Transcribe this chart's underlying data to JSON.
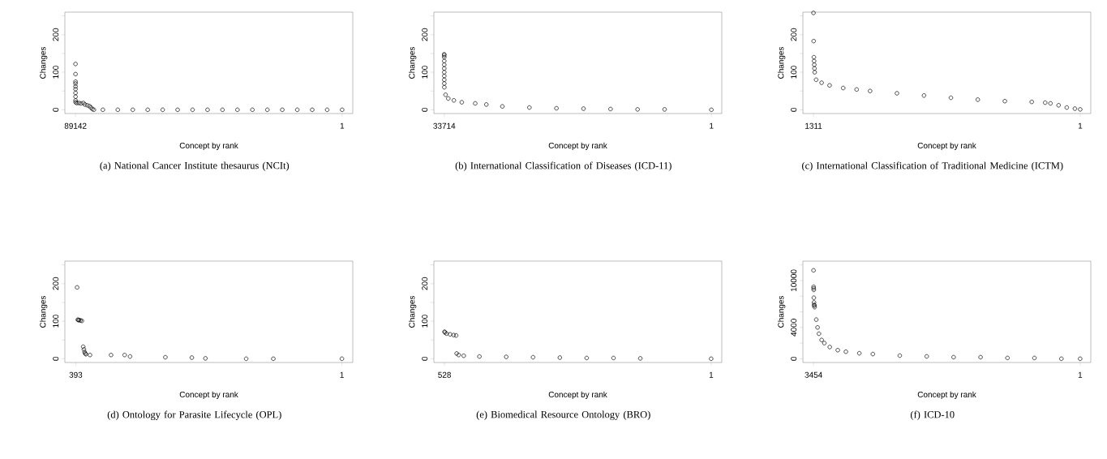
{
  "chart_data": [
    {
      "type": "scatter",
      "title": "(a)  National Cancer Institute thesaurus (NCIt)",
      "xlabel": "Concept by rank",
      "ylabel": "Changes",
      "marker": "circle",
      "x": [
        89142,
        89140,
        89138,
        89136,
        89134,
        89132,
        89130,
        89128,
        89126,
        89124,
        88700,
        88000,
        87300,
        86500,
        86000,
        85200,
        84500,
        84000,
        83500,
        83000,
        80000,
        75000,
        70000,
        65000,
        60000,
        55000,
        50000,
        45000,
        40000,
        35000,
        30000,
        25000,
        20000,
        15000,
        10000,
        5000,
        1
      ],
      "series": [
        {
          "color": "#000000",
          "values": [
            122,
            95,
            75,
            70,
            62,
            55,
            45,
            35,
            25,
            20,
            18,
            18,
            17,
            18,
            14,
            12,
            10,
            6,
            2,
            0,
            0,
            0,
            0,
            0,
            0,
            0,
            0,
            0,
            0,
            0,
            0,
            0,
            0,
            0,
            0,
            0,
            0
          ]
        }
      ],
      "xlim": [
        92700,
        -3560
      ],
      "ylim": [
        -10,
        260
      ],
      "xticks": [
        89142,
        1
      ],
      "yticks": [
        0,
        {
          "value": 50,
          "label": null
        },
        100,
        {
          "value": 150,
          "label": null
        },
        200,
        {
          "value": 250,
          "label": null
        }
      ]
    },
    {
      "type": "scatter",
      "title": "(b)  International Classification of Diseases (ICD-11)",
      "xlabel": "Concept by rank",
      "ylabel": "Changes",
      "marker": "circle",
      "x": [
        33714,
        33713,
        33712,
        33711,
        33710,
        33709,
        33708,
        33707,
        33706,
        33705,
        33704,
        33544,
        33200,
        32500,
        31500,
        29800,
        28400,
        26378,
        22966,
        19553,
        16140,
        12728,
        9316,
        5903,
        1
      ],
      "series": [
        {
          "color": "#000000",
          "values": [
            148,
            145,
            140,
            130,
            120,
            110,
            100,
            90,
            80,
            70,
            60,
            40,
            30,
            25,
            20,
            17,
            14,
            9,
            6,
            4,
            3,
            2,
            1,
            1,
            0
          ]
        }
      ],
      "xlim": [
        35020,
        -1310
      ],
      "ylim": [
        -10,
        260
      ],
      "xticks": [
        33714,
        1
      ],
      "yticks": [
        0,
        {
          "value": 50,
          "label": null
        },
        100,
        {
          "value": 150,
          "label": null
        },
        200,
        {
          "value": 250,
          "label": null
        }
      ]
    },
    {
      "type": "scatter",
      "title": "(c)  International Classification of Traditional Medicine (ICTM)",
      "xlabel": "Concept by rank",
      "ylabel": "Changes",
      "marker": "circle",
      "x": [
        1311,
        1310,
        1309,
        1308,
        1307,
        1306,
        1305,
        1298,
        1271,
        1232,
        1165,
        1099,
        1033,
        901,
        768,
        636,
        504,
        371,
        239,
        173,
        147,
        107,
        67,
        27,
        1
      ],
      "series": [
        {
          "color": "#000000",
          "values": [
            258,
            183,
            140,
            130,
            120,
            110,
            100,
            80,
            72,
            65,
            58,
            54,
            50,
            44,
            38,
            32,
            27,
            23,
            21,
            19,
            17,
            12,
            6,
            3,
            1
          ]
        }
      ],
      "xlim": [
        1363,
        -51
      ],
      "ylim": [
        -10,
        260
      ],
      "xticks": [
        1311,
        1
      ],
      "yticks": [
        0,
        {
          "value": 50,
          "label": null
        },
        100,
        {
          "value": 150,
          "label": null
        },
        200,
        {
          "value": 250,
          "label": null
        }
      ]
    },
    {
      "type": "scatter",
      "title": "(d)  Ontology for Parasite Lifecycle (OPL)",
      "xlabel": "Concept by rank",
      "ylabel": "Changes",
      "marker": "circle",
      "x": [
        391,
        390,
        389,
        388,
        386,
        384,
        382,
        381,
        380,
        379,
        378,
        372,
        341,
        321,
        313,
        261,
        222,
        202,
        142,
        102,
        1
      ],
      "series": [
        {
          "color": "#000000",
          "values": [
            190,
            104,
            103,
            103,
            102,
            101,
            32,
            25,
            18,
            14,
            12,
            10,
            10,
            10,
            6,
            4,
            3,
            1,
            0,
            0,
            0
          ]
        }
      ],
      "xlim": [
        409,
        -15
      ],
      "ylim": [
        -10,
        260
      ],
      "xticks": [
        393,
        1
      ],
      "yticks": [
        0,
        {
          "value": 50,
          "label": null
        },
        100,
        {
          "value": 150,
          "label": null
        },
        200,
        {
          "value": 250,
          "label": null
        }
      ]
    },
    {
      "type": "scatter",
      "title": "(e)  Biomedical Resource Ontology (BRO)",
      "xlabel": "Concept by rank",
      "ylabel": "Changes",
      "marker": "circle",
      "x": [
        528,
        527,
        524,
        517,
        510,
        505,
        504,
        500,
        490,
        459,
        406,
        353,
        300,
        247,
        194,
        141,
        1
      ],
      "series": [
        {
          "color": "#000000",
          "values": [
            72,
            70,
            67,
            65,
            63,
            62,
            14,
            10,
            8,
            6,
            5,
            4,
            3,
            2,
            2,
            1,
            0
          ]
        }
      ],
      "xlim": [
        549,
        -20
      ],
      "ylim": [
        -10,
        260
      ],
      "xticks": [
        528,
        1
      ],
      "yticks": [
        0,
        {
          "value": 50,
          "label": null
        },
        100,
        {
          "value": 150,
          "label": null
        },
        200,
        {
          "value": 250,
          "label": null
        }
      ]
    },
    {
      "type": "scatter",
      "title": "(f)  ICD-10",
      "xlabel": "Concept by rank",
      "ylabel": "Changes",
      "marker": "circle",
      "x": [
        3454,
        3453,
        3452,
        3451,
        3450,
        3448,
        3446,
        3443,
        3440,
        3419,
        3402,
        3384,
        3349,
        3314,
        3244,
        3140,
        3035,
        2861,
        2686,
        2337,
        1988,
        1640,
        1291,
        942,
        593,
        244,
        1
      ],
      "series": [
        {
          "color": "#000000",
          "values": [
            11300,
            9200,
            9000,
            8800,
            7800,
            7200,
            6900,
            6800,
            6600,
            5000,
            4000,
            3200,
            2400,
            2000,
            1500,
            1100,
            900,
            700,
            600,
            400,
            300,
            200,
            200,
            100,
            100,
            0,
            0
          ]
        }
      ],
      "xlim": [
        3592,
        -137
      ],
      "ylim": [
        -480,
        12480
      ],
      "xticks": [
        3454,
        1
      ],
      "yticks": [
        0,
        {
          "value": 2000,
          "label": null
        },
        4000,
        {
          "value": 6000,
          "label": null
        },
        {
          "value": 8000,
          "label": null
        },
        10000,
        {
          "value": 12000,
          "label": null
        }
      ]
    }
  ]
}
